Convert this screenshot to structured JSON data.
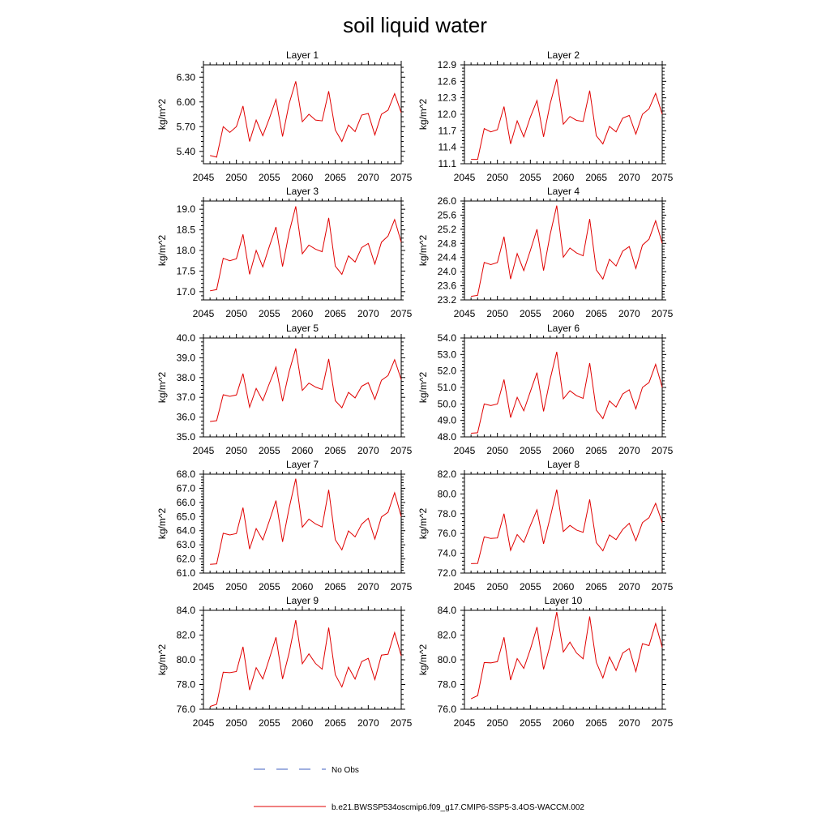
{
  "figure_title": "soil liquid water",
  "legend": {
    "obs_label": "No Obs",
    "obs_color": "#4060c0",
    "model_label": "b.e21.BWSSP534oscmip6.f09_g17.CMIP6-SSP5-3.4OS-WACCM.002",
    "model_color": "#e00000"
  },
  "chart_data": [
    {
      "type": "line",
      "title": "Layer 1",
      "ylabel": "kg/m^2",
      "xlim": [
        2045,
        2075
      ],
      "ylim": [
        5.25,
        6.45
      ],
      "xticks": [
        2045,
        2050,
        2055,
        2060,
        2065,
        2070,
        2075
      ],
      "xticklabels": [
        "2045",
        "2050",
        "2055",
        "2060",
        "2065",
        "2070",
        "2075"
      ],
      "yticks": [
        5.4,
        5.7,
        6.0,
        6.3
      ],
      "yticklabels": [
        "5.40",
        "5.70",
        "6.00",
        "6.30"
      ],
      "x": [
        2046,
        2047,
        2048,
        2049,
        2050,
        2051,
        2052,
        2053,
        2054,
        2055,
        2056,
        2057,
        2058,
        2059,
        2060,
        2061,
        2062,
        2063,
        2064,
        2065,
        2066,
        2067,
        2068,
        2069,
        2070,
        2071,
        2072,
        2073,
        2074,
        2075
      ],
      "series": [
        {
          "name": "b.e21.BWSSP534oscmip6.f09_g17.CMIP6-SSP5-3.4OS-WACCM.002",
          "color": "#e00000",
          "values": [
            5.35,
            5.33,
            5.7,
            5.63,
            5.7,
            5.95,
            5.52,
            5.78,
            5.59,
            5.8,
            6.03,
            5.58,
            5.98,
            6.25,
            5.76,
            5.85,
            5.78,
            5.77,
            6.13,
            5.66,
            5.52,
            5.72,
            5.64,
            5.84,
            5.86,
            5.6,
            5.85,
            5.9,
            6.1,
            5.87
          ]
        }
      ]
    },
    {
      "type": "line",
      "title": "Layer 2",
      "ylabel": "kg/m^2",
      "xlim": [
        2045,
        2075
      ],
      "ylim": [
        11.1,
        12.9
      ],
      "xticks": [
        2045,
        2050,
        2055,
        2060,
        2065,
        2070,
        2075
      ],
      "xticklabels": [
        "2045",
        "2050",
        "2055",
        "2060",
        "2065",
        "2070",
        "2075"
      ],
      "yticks": [
        11.1,
        11.4,
        11.7,
        12.0,
        12.3,
        12.6,
        12.9
      ],
      "yticklabels": [
        "11.1",
        "11.4",
        "11.7",
        "12.0",
        "12.3",
        "12.6",
        "12.9"
      ],
      "x": [
        2046,
        2047,
        2048,
        2049,
        2050,
        2051,
        2052,
        2053,
        2054,
        2055,
        2056,
        2057,
        2058,
        2059,
        2060,
        2061,
        2062,
        2063,
        2064,
        2065,
        2066,
        2067,
        2068,
        2069,
        2070,
        2071,
        2072,
        2073,
        2074,
        2075
      ],
      "series": [
        {
          "name": "b.e21.BWSSP534oscmip6.f09_g17.CMIP6-SSP5-3.4OS-WACCM.002",
          "color": "#e00000",
          "values": [
            11.18,
            11.18,
            11.74,
            11.68,
            11.72,
            12.14,
            11.46,
            11.88,
            11.59,
            11.95,
            12.25,
            11.59,
            12.19,
            12.64,
            11.82,
            11.96,
            11.89,
            11.87,
            12.43,
            11.61,
            11.46,
            11.78,
            11.68,
            11.93,
            11.98,
            11.64,
            12.0,
            12.1,
            12.38,
            12.0
          ]
        }
      ]
    },
    {
      "type": "line",
      "title": "Layer 3",
      "ylabel": "kg/m^2",
      "xlim": [
        2045,
        2075
      ],
      "ylim": [
        16.8,
        19.2
      ],
      "xticks": [
        2045,
        2050,
        2055,
        2060,
        2065,
        2070,
        2075
      ],
      "xticklabels": [
        "2045",
        "2050",
        "2055",
        "2060",
        "2065",
        "2070",
        "2075"
      ],
      "yticks": [
        17.0,
        17.5,
        18.0,
        18.5,
        19.0
      ],
      "yticklabels": [
        "17.0",
        "17.5",
        "18.0",
        "18.5",
        "19.0"
      ],
      "x": [
        2046,
        2047,
        2048,
        2049,
        2050,
        2051,
        2052,
        2053,
        2054,
        2055,
        2056,
        2057,
        2058,
        2059,
        2060,
        2061,
        2062,
        2063,
        2064,
        2065,
        2066,
        2067,
        2068,
        2069,
        2070,
        2071,
        2072,
        2073,
        2074,
        2075
      ],
      "series": [
        {
          "name": "b.e21.BWSSP534oscmip6.f09_g17.CMIP6-SSP5-3.4OS-WACCM.002",
          "color": "#e00000",
          "values": [
            17.02,
            17.05,
            17.81,
            17.75,
            17.8,
            18.39,
            17.42,
            18.0,
            17.6,
            18.1,
            18.57,
            17.61,
            18.44,
            19.07,
            17.92,
            18.13,
            18.03,
            17.97,
            18.79,
            17.62,
            17.42,
            17.87,
            17.72,
            18.07,
            18.17,
            17.67,
            18.2,
            18.35,
            18.75,
            18.2
          ]
        }
      ]
    },
    {
      "type": "line",
      "title": "Layer 4",
      "ylabel": "kg/m^2",
      "xlim": [
        2045,
        2075
      ],
      "ylim": [
        23.2,
        26.0
      ],
      "xticks": [
        2045,
        2050,
        2055,
        2060,
        2065,
        2070,
        2075
      ],
      "xticklabels": [
        "2045",
        "2050",
        "2055",
        "2060",
        "2065",
        "2070",
        "2075"
      ],
      "yticks": [
        23.2,
        23.6,
        24.0,
        24.4,
        24.8,
        25.2,
        25.6,
        26.0
      ],
      "yticklabels": [
        "23.2",
        "23.6",
        "24.0",
        "24.4",
        "24.8",
        "25.2",
        "25.6",
        "26.0"
      ],
      "x": [
        2046,
        2047,
        2048,
        2049,
        2050,
        2051,
        2052,
        2053,
        2054,
        2055,
        2056,
        2057,
        2058,
        2059,
        2060,
        2061,
        2062,
        2063,
        2064,
        2065,
        2066,
        2067,
        2068,
        2069,
        2070,
        2071,
        2072,
        2073,
        2074,
        2075
      ],
      "series": [
        {
          "name": "b.e21.BWSSP534oscmip6.f09_g17.CMIP6-SSP5-3.4OS-WACCM.002",
          "color": "#e00000",
          "values": [
            23.3,
            23.33,
            24.26,
            24.2,
            24.26,
            24.99,
            23.79,
            24.51,
            24.03,
            24.6,
            25.2,
            24.03,
            25.05,
            25.87,
            24.41,
            24.67,
            24.53,
            24.45,
            25.49,
            24.05,
            23.79,
            24.35,
            24.16,
            24.58,
            24.71,
            24.09,
            24.75,
            24.92,
            25.44,
            24.8
          ]
        }
      ]
    },
    {
      "type": "line",
      "title": "Layer 5",
      "ylabel": "kg/m^2",
      "xlim": [
        2045,
        2075
      ],
      "ylim": [
        35.0,
        40.0
      ],
      "xticks": [
        2045,
        2050,
        2055,
        2060,
        2065,
        2070,
        2075
      ],
      "xticklabels": [
        "2045",
        "2050",
        "2055",
        "2060",
        "2065",
        "2070",
        "2075"
      ],
      "yticks": [
        35.0,
        36.0,
        37.0,
        38.0,
        39.0,
        40.0
      ],
      "yticklabels": [
        "35.0",
        "36.0",
        "37.0",
        "38.0",
        "39.0",
        "40.0"
      ],
      "x": [
        2046,
        2047,
        2048,
        2049,
        2050,
        2051,
        2052,
        2053,
        2054,
        2055,
        2056,
        2057,
        2058,
        2059,
        2060,
        2061,
        2062,
        2063,
        2064,
        2065,
        2066,
        2067,
        2068,
        2069,
        2070,
        2071,
        2072,
        2073,
        2074,
        2075
      ],
      "series": [
        {
          "name": "b.e21.BWSSP534oscmip6.f09_g17.CMIP6-SSP5-3.4OS-WACCM.002",
          "color": "#e00000",
          "values": [
            35.78,
            35.82,
            37.13,
            37.05,
            37.12,
            38.2,
            36.5,
            37.45,
            36.83,
            37.7,
            38.53,
            36.8,
            38.3,
            39.47,
            37.35,
            37.72,
            37.52,
            37.4,
            38.94,
            36.83,
            36.47,
            37.25,
            36.97,
            37.56,
            37.74,
            36.9,
            37.86,
            38.1,
            38.9,
            37.9
          ]
        }
      ]
    },
    {
      "type": "line",
      "title": "Layer 6",
      "ylabel": "kg/m^2",
      "xlim": [
        2045,
        2075
      ],
      "ylim": [
        48.0,
        54.0
      ],
      "xticks": [
        2045,
        2050,
        2055,
        2060,
        2065,
        2070,
        2075
      ],
      "xticklabels": [
        "2045",
        "2050",
        "2055",
        "2060",
        "2065",
        "2070",
        "2075"
      ],
      "yticks": [
        48.0,
        49.0,
        50.0,
        51.0,
        52.0,
        53.0,
        54.0
      ],
      "yticklabels": [
        "48.0",
        "49.0",
        "50.0",
        "51.0",
        "52.0",
        "53.0",
        "54.0"
      ],
      "x": [
        2046,
        2047,
        2048,
        2049,
        2050,
        2051,
        2052,
        2053,
        2054,
        2055,
        2056,
        2057,
        2058,
        2059,
        2060,
        2061,
        2062,
        2063,
        2064,
        2065,
        2066,
        2067,
        2068,
        2069,
        2070,
        2071,
        2072,
        2073,
        2074,
        2075
      ],
      "series": [
        {
          "name": "b.e21.BWSSP534oscmip6.f09_g17.CMIP6-SSP5-3.4OS-WACCM.002",
          "color": "#e00000",
          "values": [
            48.22,
            48.25,
            50.0,
            49.9,
            50.0,
            51.48,
            49.17,
            50.4,
            49.58,
            50.75,
            51.9,
            49.55,
            51.5,
            53.16,
            50.31,
            50.8,
            50.5,
            50.34,
            52.48,
            49.63,
            49.11,
            50.18,
            49.81,
            50.6,
            50.86,
            49.7,
            51.0,
            51.3,
            52.4,
            51.0
          ]
        }
      ]
    },
    {
      "type": "line",
      "title": "Layer 7",
      "ylabel": "kg/m^2",
      "xlim": [
        2045,
        2075
      ],
      "ylim": [
        61.0,
        68.0
      ],
      "xticks": [
        2045,
        2050,
        2055,
        2060,
        2065,
        2070,
        2075
      ],
      "xticklabels": [
        "2045",
        "2050",
        "2055",
        "2060",
        "2065",
        "2070",
        "2075"
      ],
      "yticks": [
        61.0,
        62.0,
        63.0,
        64.0,
        65.0,
        66.0,
        67.0,
        68.0
      ],
      "yticklabels": [
        "61.0",
        "62.0",
        "63.0",
        "64.0",
        "65.0",
        "66.0",
        "67.0",
        "68.0"
      ],
      "x": [
        2046,
        2047,
        2048,
        2049,
        2050,
        2051,
        2052,
        2053,
        2054,
        2055,
        2056,
        2057,
        2058,
        2059,
        2060,
        2061,
        2062,
        2063,
        2064,
        2065,
        2066,
        2067,
        2068,
        2069,
        2070,
        2071,
        2072,
        2073,
        2074,
        2075
      ],
      "series": [
        {
          "name": "b.e21.BWSSP534oscmip6.f09_g17.CMIP6-SSP5-3.4OS-WACCM.002",
          "color": "#e00000",
          "values": [
            61.62,
            61.65,
            63.82,
            63.7,
            63.8,
            65.63,
            62.7,
            64.15,
            63.34,
            64.7,
            66.13,
            63.21,
            65.6,
            67.68,
            64.25,
            64.82,
            64.48,
            64.26,
            66.89,
            63.36,
            62.64,
            63.98,
            63.56,
            64.46,
            64.88,
            63.41,
            64.97,
            65.3,
            66.68,
            65.0
          ]
        }
      ]
    },
    {
      "type": "line",
      "title": "Layer 8",
      "ylabel": "kg/m^2",
      "xlim": [
        2045,
        2075
      ],
      "ylim": [
        72.0,
        82.0
      ],
      "xticks": [
        2045,
        2050,
        2055,
        2060,
        2065,
        2070,
        2075
      ],
      "xticklabels": [
        "2045",
        "2050",
        "2055",
        "2060",
        "2065",
        "2070",
        "2075"
      ],
      "yticks": [
        72.0,
        74.0,
        76.0,
        78.0,
        80.0,
        82.0
      ],
      "yticklabels": [
        "72.0",
        "74.0",
        "76.0",
        "78.0",
        "80.0",
        "82.0"
      ],
      "x": [
        2046,
        2047,
        2048,
        2049,
        2050,
        2051,
        2052,
        2053,
        2054,
        2055,
        2056,
        2057,
        2058,
        2059,
        2060,
        2061,
        2062,
        2063,
        2064,
        2065,
        2066,
        2067,
        2068,
        2069,
        2070,
        2071,
        2072,
        2073,
        2074,
        2075
      ],
      "series": [
        {
          "name": "b.e21.BWSSP534oscmip6.f09_g17.CMIP6-SSP5-3.4OS-WACCM.002",
          "color": "#e00000",
          "values": [
            72.95,
            72.97,
            75.66,
            75.5,
            75.55,
            78.0,
            74.3,
            75.9,
            75.1,
            76.8,
            78.4,
            74.96,
            77.6,
            80.44,
            76.2,
            76.82,
            76.35,
            76.12,
            79.44,
            75.08,
            74.25,
            75.86,
            75.38,
            76.4,
            77.03,
            75.27,
            77.1,
            77.6,
            79.05,
            77.1
          ]
        }
      ]
    },
    {
      "type": "line",
      "title": "Layer 9",
      "ylabel": "kg/m^2",
      "xlim": [
        2045,
        2075
      ],
      "ylim": [
        76.0,
        84.0
      ],
      "xticks": [
        2045,
        2050,
        2055,
        2060,
        2065,
        2070,
        2075
      ],
      "xticklabels": [
        "2045",
        "2050",
        "2055",
        "2060",
        "2065",
        "2070",
        "2075"
      ],
      "yticks": [
        76.0,
        78.0,
        80.0,
        82.0,
        84.0
      ],
      "yticklabels": [
        "76.0",
        "78.0",
        "80.0",
        "82.0",
        "84.0"
      ],
      "x": [
        2046,
        2047,
        2048,
        2049,
        2050,
        2051,
        2052,
        2053,
        2054,
        2055,
        2056,
        2057,
        2058,
        2059,
        2060,
        2061,
        2062,
        2063,
        2064,
        2065,
        2066,
        2067,
        2068,
        2069,
        2070,
        2071,
        2072,
        2073,
        2074,
        2075
      ],
      "series": [
        {
          "name": "b.e21.BWSSP534oscmip6.f09_g17.CMIP6-SSP5-3.4OS-WACCM.002",
          "color": "#e00000",
          "values": [
            76.22,
            76.4,
            79.0,
            78.96,
            79.05,
            81.05,
            77.55,
            79.36,
            78.45,
            80.1,
            81.82,
            78.45,
            80.56,
            83.21,
            79.68,
            80.48,
            79.7,
            79.24,
            82.6,
            78.8,
            77.8,
            79.4,
            78.44,
            79.85,
            80.12,
            78.4,
            80.38,
            80.45,
            82.2,
            80.32
          ]
        }
      ]
    },
    {
      "type": "line",
      "title": "Layer 10",
      "ylabel": "kg/m^2",
      "xlim": [
        2045,
        2075
      ],
      "ylim": [
        76.0,
        84.0
      ],
      "xticks": [
        2045,
        2050,
        2055,
        2060,
        2065,
        2070,
        2075
      ],
      "xticklabels": [
        "2045",
        "2050",
        "2055",
        "2060",
        "2065",
        "2070",
        "2075"
      ],
      "yticks": [
        76.0,
        78.0,
        80.0,
        82.0,
        84.0
      ],
      "yticklabels": [
        "76.0",
        "78.0",
        "80.0",
        "82.0",
        "84.0"
      ],
      "x": [
        2046,
        2047,
        2048,
        2049,
        2050,
        2051,
        2052,
        2053,
        2054,
        2055,
        2056,
        2057,
        2058,
        2059,
        2060,
        2061,
        2062,
        2063,
        2064,
        2065,
        2066,
        2067,
        2068,
        2069,
        2070,
        2071,
        2072,
        2073,
        2074,
        2075
      ],
      "series": [
        {
          "name": "b.e21.BWSSP534oscmip6.f09_g17.CMIP6-SSP5-3.4OS-WACCM.002",
          "color": "#e00000",
          "values": [
            76.85,
            77.1,
            79.78,
            79.75,
            79.85,
            81.82,
            78.36,
            80.1,
            79.3,
            80.85,
            82.65,
            79.23,
            81.2,
            83.86,
            80.63,
            81.43,
            80.55,
            80.08,
            83.5,
            79.8,
            78.53,
            80.23,
            79.14,
            80.54,
            80.9,
            79.05,
            81.3,
            81.15,
            82.93,
            81.0
          ]
        }
      ]
    }
  ]
}
